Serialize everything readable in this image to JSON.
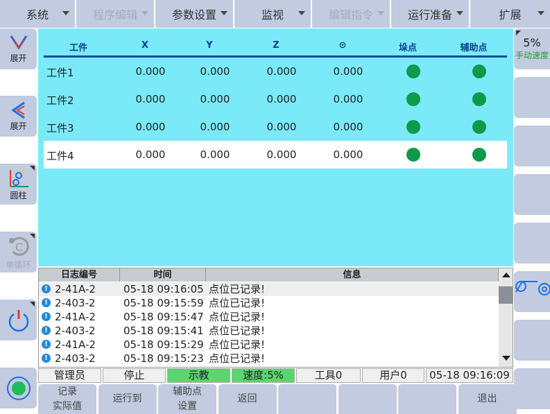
{
  "menu": [
    {
      "label": "系统",
      "enabled": true
    },
    {
      "label": "程序编辑",
      "enabled": false
    },
    {
      "label": "参数设置",
      "enabled": true
    },
    {
      "label": "监视",
      "enabled": true
    },
    {
      "label": "编辑指令",
      "enabled": false
    },
    {
      "label": "运行准备",
      "enabled": true
    },
    {
      "label": "扩展",
      "enabled": true
    }
  ],
  "left": {
    "expand1": "展开",
    "expand2": "展开",
    "coord": "圆柱",
    "cycle": "单循环"
  },
  "right": {
    "speed": "5%",
    "speed_label": "手动速度"
  },
  "table": {
    "headers": [
      "工件",
      "X",
      "Y",
      "Z",
      "⊙",
      "垛点",
      "辅助点"
    ],
    "rows": [
      {
        "name": "工件1",
        "x": "0.000",
        "y": "0.000",
        "z": "0.000",
        "r": "0.000"
      },
      {
        "name": "工件2",
        "x": "0.000",
        "y": "0.000",
        "z": "0.000",
        "r": "0.000"
      },
      {
        "name": "工件3",
        "x": "0.000",
        "y": "0.000",
        "z": "0.000",
        "r": "0.000"
      },
      {
        "name": "工件4",
        "x": "0.000",
        "y": "0.000",
        "z": "0.000",
        "r": "0.000"
      }
    ],
    "selected_row": 4,
    "status_color": "#0d9a4a"
  },
  "log": {
    "headers": [
      "日志编号",
      "时间",
      "信息"
    ],
    "rows": [
      {
        "id": "2-41A-2",
        "time": "05-18 09:16:05",
        "msg": "点位已记录!"
      },
      {
        "id": "2-403-2",
        "time": "05-18 09:15:59",
        "msg": "点位已记录!"
      },
      {
        "id": "2-41A-2",
        "time": "05-18 09:15:47",
        "msg": "点位已记录!"
      },
      {
        "id": "2-403-2",
        "time": "05-18 09:15:41",
        "msg": "点位已记录!"
      },
      {
        "id": "2-41A-2",
        "time": "05-18 09:15:29",
        "msg": "点位已记录!"
      },
      {
        "id": "2-403-2",
        "time": "05-18 09:15:23",
        "msg": "点位已记录!"
      }
    ]
  },
  "status": {
    "user": "管理员",
    "state": "停止",
    "mode": "示教",
    "speed": "速度:5%",
    "tool": "工具0",
    "userframe": "用户0",
    "clock": "05-18 09:16:09"
  },
  "buttons": [
    [
      "记录",
      "实际值"
    ],
    [
      "运行到"
    ],
    [
      "辅助点",
      "设置"
    ],
    [
      "返回"
    ],
    [],
    [],
    [],
    [
      "退出"
    ]
  ]
}
